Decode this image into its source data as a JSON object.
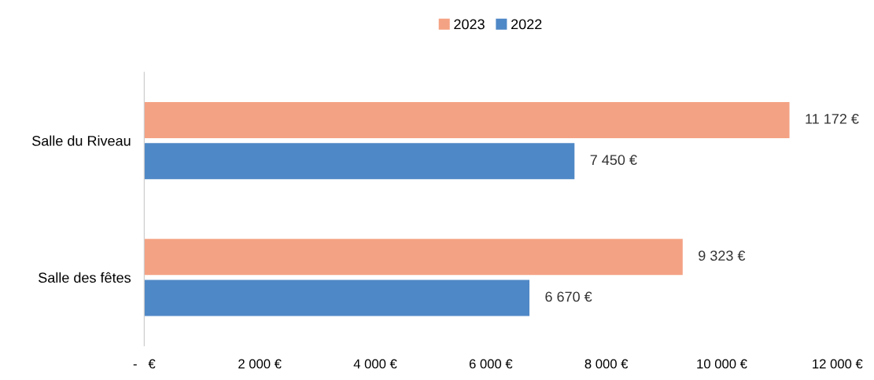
{
  "chart_data": {
    "type": "bar",
    "orientation": "horizontal",
    "categories": [
      "Salle du Riveau",
      "Salle des fêtes"
    ],
    "series": [
      {
        "name": "2023",
        "color": "#f4a284",
        "values": [
          11172,
          9323
        ],
        "value_labels": [
          "11 172 €",
          "9 323 €"
        ]
      },
      {
        "name": "2022",
        "color": "#4f88c6",
        "values": [
          7450,
          6670
        ],
        "value_labels": [
          "7 450 €",
          "6 670 €"
        ]
      }
    ],
    "xlim": [
      0,
      12000
    ],
    "xticks": [
      {
        "value": 0,
        "label": "-   €"
      },
      {
        "value": 2000,
        "label": "2 000 €"
      },
      {
        "value": 4000,
        "label": "4 000 €"
      },
      {
        "value": 6000,
        "label": "6 000 €"
      },
      {
        "value": 8000,
        "label": "8 000 €"
      },
      {
        "value": 10000,
        "label": "10 000 €"
      },
      {
        "value": 12000,
        "label": "12 000 €"
      }
    ],
    "grid": false,
    "legend": "top"
  }
}
